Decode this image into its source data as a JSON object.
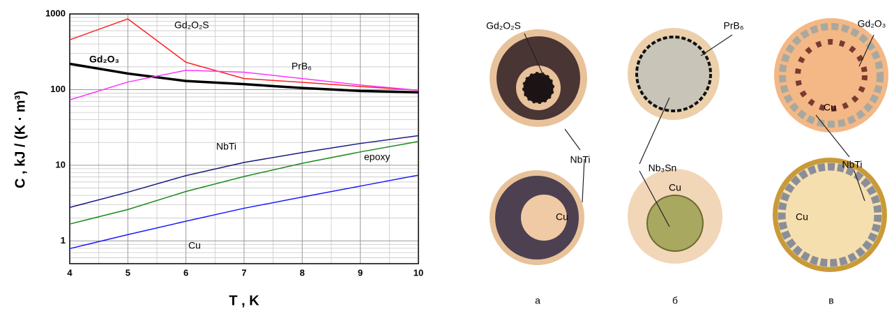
{
  "chart_data": {
    "type": "line",
    "log_y": true,
    "grid": true,
    "x_label": "T , K",
    "y_label": "C , kJ / (K · m³)",
    "xlim": [
      4,
      10
    ],
    "xticks": [
      4,
      5,
      6,
      7,
      8,
      9,
      10
    ],
    "xminorticks": [
      4.5,
      5.5,
      6.5,
      7.5,
      8.5,
      9.5
    ],
    "ylim": [
      0.5,
      1000
    ],
    "yticks": [
      1,
      10,
      100,
      1000
    ],
    "yminorticks": [
      0.6,
      0.7,
      0.8,
      0.9,
      2,
      3,
      4,
      5,
      6,
      7,
      8,
      9,
      20,
      30,
      40,
      50,
      60,
      70,
      80,
      90,
      200,
      300,
      400,
      500,
      600,
      700,
      800,
      900
    ],
    "x": [
      4,
      5,
      6,
      7,
      8,
      9,
      10
    ],
    "series": [
      {
        "name": "Gd₂O₂S",
        "color": "#ff2020",
        "values": [
          455,
          860,
          230,
          140,
          125,
          110,
          98
        ]
      },
      {
        "name": "Gd₂O₃",
        "color": "#000000",
        "values": [
          219,
          163,
          130,
          118,
          105,
          96,
          92
        ]
      },
      {
        "name": "PrB₆",
        "color": "#ff33ff",
        "values": [
          73,
          126,
          180,
          170,
          140,
          115,
          98
        ]
      },
      {
        "name": "NbTi",
        "color": "#1a1a80",
        "values": [
          2.77,
          4.4,
          7.3,
          10.9,
          14.7,
          19.4,
          24.6
        ]
      },
      {
        "name": "epoxy",
        "color": "#1a8a1a",
        "values": [
          1.67,
          2.6,
          4.5,
          7.1,
          10.6,
          15,
          20.6
        ]
      },
      {
        "name": "Cu",
        "color": "#1a1aff",
        "values": [
          0.79,
          1.21,
          1.82,
          2.7,
          3.8,
          5.3,
          7.4
        ]
      }
    ]
  },
  "figure": {
    "labels": [
      "Gd₂O₂S",
      "PrB₆",
      "Gd₂O₃",
      "NbTi",
      "Nb₃Sn",
      "Cu",
      "Cu",
      "Cu",
      "NbTi",
      "Cu"
    ],
    "panels": [
      "а",
      "б",
      "в"
    ]
  }
}
